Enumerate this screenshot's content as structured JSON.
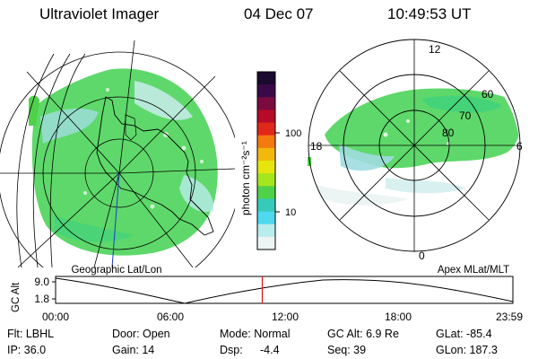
{
  "header": {
    "instrument": "Ultraviolet Imager",
    "date": "04 Dec 07",
    "time": "10:49:53 UT"
  },
  "colorbar": {
    "label": "photon cm⁻²s⁻¹",
    "ticks": [
      "100",
      "10"
    ],
    "colors": [
      "#1a0a2e",
      "#3a0a48",
      "#7a0a40",
      "#b50a28",
      "#e0281a",
      "#f47a10",
      "#f2b90c",
      "#e6e60e",
      "#a6e61e",
      "#4fd14a",
      "#36cbb8",
      "#4fd8ee",
      "#b9ecec",
      "#ecf4f4"
    ]
  },
  "map_left": {
    "caption": "Geographic Lat/Lon"
  },
  "map_right": {
    "caption": "Apex MLat/MLT",
    "mlt_labels": {
      "top": "12",
      "left": "18",
      "right": "6",
      "bottom": "0"
    },
    "lat_labels": [
      "60",
      "70",
      "80"
    ]
  },
  "altitude_plot": {
    "axis_label": "GC Alt",
    "ticks": [
      "9.0",
      "1.8"
    ],
    "time_ticks": [
      "00:00",
      "06:00",
      "12:00",
      "18:00",
      "23:59"
    ],
    "current_time_marker_color": "#e01010",
    "current_time_fraction": 0.452
  },
  "info": {
    "filter": "Flt: LBHL",
    "ip": "IP: 36.0",
    "door": "Door: Open",
    "gain": "Gain: 14",
    "mode": "Mode: Normal",
    "dsp": "Dsp:",
    "dsp_value": "-4.4",
    "gc_alt": "GC Alt: 6.9 Re",
    "seq": "Seq: 39",
    "glat": "GLat: -85.4",
    "glon": "GLon: 187.3"
  }
}
